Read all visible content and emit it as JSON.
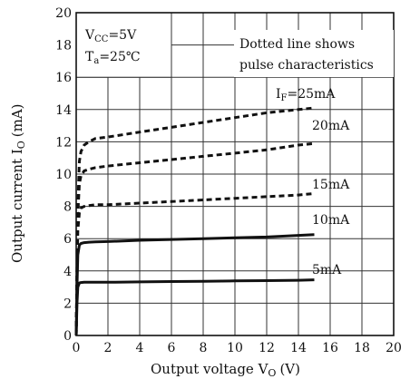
{
  "chart_data": {
    "type": "line",
    "xlabel": "Output voltage V",
    "xlabel_sub": "O",
    "xlabel_unit": "(V)",
    "ylabel": "Output current I",
    "ylabel_sub": "O",
    "ylabel_unit": "(mA)",
    "xlim": [
      0,
      20
    ],
    "ylim": [
      0,
      20
    ],
    "xticks": [
      0,
      2,
      4,
      6,
      8,
      10,
      12,
      14,
      16,
      18,
      20
    ],
    "yticks": [
      0,
      2,
      4,
      6,
      8,
      10,
      12,
      14,
      16,
      18,
      20
    ],
    "grid": true,
    "conditions": {
      "vcc_label": "V",
      "vcc_sub": "CC",
      "vcc_value": "=5V",
      "ta_label": "T",
      "ta_sub": "a",
      "ta_value": "=25℃"
    },
    "note_lines": [
      "Dotted line shows",
      "pulse characteristics"
    ],
    "series": [
      {
        "name": "I",
        "name_sub": "F",
        "name_value": "=25mA",
        "style": "dotted",
        "x": [
          0,
          0.05,
          0.1,
          0.2,
          0.3,
          0.5,
          0.8,
          1.2,
          2,
          4,
          6,
          8,
          10,
          12,
          14,
          15
        ],
        "y": [
          0,
          4,
          8,
          10.8,
          11.4,
          11.8,
          12.0,
          12.2,
          12.3,
          12.6,
          12.9,
          13.2,
          13.5,
          13.8,
          14.0,
          14.1
        ]
      },
      {
        "name": "20mA",
        "style": "dotted",
        "x": [
          0,
          0.05,
          0.1,
          0.2,
          0.3,
          0.5,
          0.8,
          1.2,
          2,
          4,
          6,
          8,
          10,
          12,
          14,
          15
        ],
        "y": [
          0,
          4,
          7.5,
          9.4,
          9.9,
          10.2,
          10.3,
          10.4,
          10.5,
          10.7,
          10.9,
          11.1,
          11.3,
          11.5,
          11.8,
          11.9
        ]
      },
      {
        "name": "15mA",
        "style": "dotted",
        "x": [
          0,
          0.05,
          0.1,
          0.2,
          0.3,
          0.5,
          0.8,
          1.2,
          2,
          4,
          6,
          8,
          10,
          12,
          14,
          15
        ],
        "y": [
          0,
          3.5,
          6.5,
          7.6,
          7.9,
          8.0,
          8.05,
          8.1,
          8.1,
          8.2,
          8.3,
          8.4,
          8.5,
          8.6,
          8.7,
          8.8
        ]
      },
      {
        "name": "10mA",
        "style": "solid",
        "x": [
          0,
          0.05,
          0.1,
          0.2,
          0.3,
          0.5,
          0.8,
          1.2,
          2,
          4,
          6,
          8,
          10,
          12,
          14,
          15
        ],
        "y": [
          0,
          3,
          5.0,
          5.6,
          5.7,
          5.75,
          5.78,
          5.8,
          5.82,
          5.9,
          5.95,
          6.0,
          6.05,
          6.1,
          6.2,
          6.25
        ]
      },
      {
        "name": "5mA",
        "style": "solid",
        "x": [
          0,
          0.05,
          0.1,
          0.2,
          0.3,
          0.5,
          0.8,
          1.2,
          2,
          4,
          6,
          8,
          10,
          12,
          14,
          15
        ],
        "y": [
          0,
          2,
          3.0,
          3.25,
          3.28,
          3.3,
          3.3,
          3.3,
          3.3,
          3.32,
          3.34,
          3.36,
          3.38,
          3.4,
          3.42,
          3.45
        ]
      }
    ]
  }
}
